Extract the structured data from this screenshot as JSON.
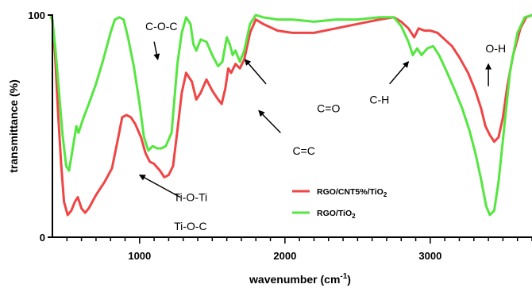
{
  "chart_data": {
    "type": "line",
    "title": "",
    "xlabel": "wavenumber (cm",
    "xlabel_sup": "-1",
    "xlabel_end": ")",
    "ylabel": "transmittance (%)",
    "xlim": [
      400,
      3700
    ],
    "ylim": [
      0,
      100
    ],
    "x_ticks": [
      1000,
      2000,
      3000
    ],
    "y_ticks": [
      0,
      100
    ],
    "grid": false,
    "legend_position": "lower-right",
    "series": [
      {
        "name": "RGO/CNT5%/TiO",
        "name_sub": "2",
        "color": "#ef4545",
        "points": [
          [
            390,
            99
          ],
          [
            400,
            98
          ],
          [
            420,
            80
          ],
          [
            440,
            55
          ],
          [
            460,
            33
          ],
          [
            480,
            16
          ],
          [
            505,
            10
          ],
          [
            530,
            12
          ],
          [
            555,
            16
          ],
          [
            575,
            18
          ],
          [
            600,
            13
          ],
          [
            625,
            11
          ],
          [
            650,
            13
          ],
          [
            700,
            19
          ],
          [
            760,
            25
          ],
          [
            810,
            31
          ],
          [
            850,
            44
          ],
          [
            880,
            54
          ],
          [
            910,
            55
          ],
          [
            940,
            54
          ],
          [
            970,
            51
          ],
          [
            1010,
            45
          ],
          [
            1040,
            38
          ],
          [
            1070,
            34
          ],
          [
            1100,
            33
          ],
          [
            1140,
            30
          ],
          [
            1170,
            27
          ],
          [
            1200,
            28
          ],
          [
            1230,
            32
          ],
          [
            1260,
            48
          ],
          [
            1290,
            65
          ],
          [
            1320,
            74
          ],
          [
            1360,
            70
          ],
          [
            1390,
            62
          ],
          [
            1420,
            65
          ],
          [
            1460,
            71
          ],
          [
            1500,
            66
          ],
          [
            1540,
            62
          ],
          [
            1565,
            60
          ],
          [
            1590,
            67
          ],
          [
            1610,
            76
          ],
          [
            1630,
            74
          ],
          [
            1660,
            78
          ],
          [
            1690,
            76
          ],
          [
            1720,
            80
          ],
          [
            1760,
            92
          ],
          [
            1800,
            98
          ],
          [
            1850,
            96
          ],
          [
            1950,
            93
          ],
          [
            2050,
            92
          ],
          [
            2200,
            92
          ],
          [
            2350,
            94
          ],
          [
            2500,
            96
          ],
          [
            2650,
            98
          ],
          [
            2750,
            99
          ],
          [
            2800,
            97
          ],
          [
            2850,
            94
          ],
          [
            2890,
            90
          ],
          [
            2920,
            94
          ],
          [
            2960,
            93
          ],
          [
            3000,
            93
          ],
          [
            3050,
            92
          ],
          [
            3100,
            89
          ],
          [
            3150,
            86
          ],
          [
            3200,
            81
          ],
          [
            3260,
            74
          ],
          [
            3310,
            66
          ],
          [
            3350,
            58
          ],
          [
            3380,
            50
          ],
          [
            3410,
            46
          ],
          [
            3440,
            43
          ],
          [
            3470,
            45
          ],
          [
            3500,
            54
          ],
          [
            3530,
            68
          ],
          [
            3570,
            82
          ],
          [
            3620,
            94
          ],
          [
            3660,
            99
          ],
          [
            3700,
            100
          ]
        ]
      },
      {
        "name": "RGO/TiO",
        "name_sub": "2",
        "color": "#55e640",
        "points": [
          [
            390,
            99
          ],
          [
            400,
            98
          ],
          [
            420,
            85
          ],
          [
            445,
            66
          ],
          [
            470,
            46
          ],
          [
            495,
            32
          ],
          [
            515,
            30
          ],
          [
            540,
            40
          ],
          [
            565,
            50
          ],
          [
            580,
            47
          ],
          [
            610,
            53
          ],
          [
            650,
            60
          ],
          [
            700,
            69
          ],
          [
            750,
            80
          ],
          [
            800,
            92
          ],
          [
            830,
            98
          ],
          [
            860,
            99
          ],
          [
            890,
            98
          ],
          [
            920,
            90
          ],
          [
            960,
            77
          ],
          [
            1000,
            60
          ],
          [
            1030,
            45
          ],
          [
            1060,
            39
          ],
          [
            1090,
            41
          ],
          [
            1120,
            40
          ],
          [
            1150,
            40
          ],
          [
            1180,
            41
          ],
          [
            1220,
            47
          ],
          [
            1260,
            78
          ],
          [
            1290,
            92
          ],
          [
            1320,
            99
          ],
          [
            1350,
            96
          ],
          [
            1370,
            87
          ],
          [
            1390,
            84
          ],
          [
            1420,
            89
          ],
          [
            1460,
            88
          ],
          [
            1500,
            82
          ],
          [
            1540,
            77
          ],
          [
            1570,
            79
          ],
          [
            1600,
            90
          ],
          [
            1620,
            87
          ],
          [
            1640,
            82
          ],
          [
            1660,
            84
          ],
          [
            1690,
            79
          ],
          [
            1720,
            84
          ],
          [
            1760,
            96
          ],
          [
            1800,
            100
          ],
          [
            1850,
            99
          ],
          [
            1950,
            98
          ],
          [
            2050,
            98
          ],
          [
            2200,
            97
          ],
          [
            2350,
            98
          ],
          [
            2500,
            98
          ],
          [
            2650,
            99
          ],
          [
            2750,
            99
          ],
          [
            2800,
            95
          ],
          [
            2850,
            88
          ],
          [
            2880,
            82
          ],
          [
            2910,
            85
          ],
          [
            2940,
            82
          ],
          [
            2980,
            85
          ],
          [
            3020,
            86
          ],
          [
            3060,
            82
          ],
          [
            3110,
            75
          ],
          [
            3170,
            66
          ],
          [
            3220,
            58
          ],
          [
            3270,
            48
          ],
          [
            3310,
            38
          ],
          [
            3350,
            26
          ],
          [
            3385,
            14
          ],
          [
            3410,
            10
          ],
          [
            3440,
            12
          ],
          [
            3470,
            25
          ],
          [
            3510,
            50
          ],
          [
            3550,
            75
          ],
          [
            3600,
            92
          ],
          [
            3650,
            99
          ],
          [
            3700,
            100
          ]
        ]
      }
    ],
    "annotations": [
      {
        "text": "C-O-C",
        "x": 1150,
        "y": 95,
        "arrow_from": [
          1100,
          88
        ],
        "arrow_to": [
          1125,
          80
        ]
      },
      {
        "text": "C=O",
        "x": 2300,
        "y": 58,
        "arrow_from": [
          1870,
          69
        ],
        "arrow_to": [
          1725,
          80
        ]
      },
      {
        "text": "C=C",
        "x": 2130,
        "y": 39,
        "arrow_from": [
          1970,
          47
        ],
        "arrow_to": [
          1820,
          57
        ]
      },
      {
        "text": "Ti-O-Ti",
        "x": 1350,
        "y": 18,
        "arrow_from": [
          1280,
          18
        ],
        "arrow_to": [
          1000,
          28
        ]
      },
      {
        "text": "Ti-O-C",
        "x": 1350,
        "y": 5,
        "arrow_from": null,
        "arrow_to": null
      },
      {
        "text": "C-H",
        "x": 2650,
        "y": 62,
        "arrow_from": [
          2720,
          69
        ],
        "arrow_to": [
          2850,
          79
        ]
      },
      {
        "text": "O-H",
        "x": 3450,
        "y": 85,
        "arrow_from": [
          3400,
          68
        ],
        "arrow_to": [
          3400,
          78
        ]
      }
    ]
  }
}
